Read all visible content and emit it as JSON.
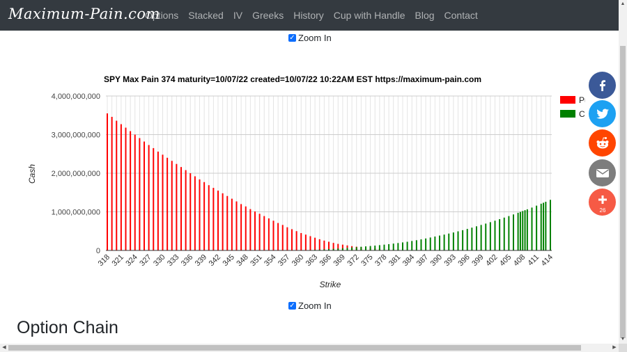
{
  "navbar": {
    "brand": "Maximum-Pain.com",
    "items": [
      "Options",
      "Stacked",
      "IV",
      "Greeks",
      "History",
      "Cup with Handle",
      "Blog",
      "Contact"
    ]
  },
  "zoom_top": {
    "label": "Zoom In",
    "checked": true
  },
  "zoom_bottom": {
    "label": "Zoom In",
    "checked": true
  },
  "section_heading": "Option Chain",
  "social": {
    "buttons": [
      {
        "name": "facebook",
        "color": "#3b5998"
      },
      {
        "name": "twitter",
        "color": "#1da1f2"
      },
      {
        "name": "reddit",
        "color": "#ff4500"
      },
      {
        "name": "email",
        "color": "#7d7d7d"
      },
      {
        "name": "share-more",
        "color": "#f65a45"
      }
    ],
    "share_count": "26"
  },
  "chart_data": {
    "type": "bar",
    "title": "SPY Max Pain 374 maturity=10/07/22 created=10/07/22 10:22AM EST https://maximum-pain.com",
    "xlabel": "Strike",
    "ylabel": "Cash",
    "ylim": [
      0,
      4000000000
    ],
    "yticks": [
      "0",
      "1,000,000,000",
      "2,000,000,000",
      "3,000,000,000",
      "4,000,000,000"
    ],
    "x_tick_labels": [
      "318",
      "321",
      "324",
      "327",
      "330",
      "333",
      "336",
      "339",
      "342",
      "345",
      "348",
      "351",
      "354",
      "357",
      "360",
      "363",
      "366",
      "369",
      "372",
      "375",
      "378",
      "381",
      "384",
      "387",
      "390",
      "393",
      "396",
      "399",
      "402",
      "405",
      "408",
      "411",
      "414"
    ],
    "legend": {
      "position": "right",
      "entries": [
        {
          "name": "Pu",
          "color": "#ff0000"
        },
        {
          "name": "Ca",
          "color": "#008000"
        }
      ]
    },
    "stacked": true,
    "grid": true,
    "series": [
      {
        "name": "Puts",
        "color": "#ff0000",
        "points": [
          [
            318,
            3550000000
          ],
          [
            319,
            3460000000
          ],
          [
            320,
            3360000000
          ],
          [
            321,
            3270000000
          ],
          [
            322,
            3180000000
          ],
          [
            323,
            3090000000
          ],
          [
            324,
            3000000000
          ],
          [
            325,
            2910000000
          ],
          [
            326,
            2820000000
          ],
          [
            327,
            2730000000
          ],
          [
            328,
            2650000000
          ],
          [
            329,
            2560000000
          ],
          [
            330,
            2480000000
          ],
          [
            331,
            2400000000
          ],
          [
            332,
            2320000000
          ],
          [
            333,
            2240000000
          ],
          [
            334,
            2160000000
          ],
          [
            335,
            2080000000
          ],
          [
            336,
            2000000000
          ],
          [
            337,
            1920000000
          ],
          [
            338,
            1840000000
          ],
          [
            339,
            1770000000
          ],
          [
            340,
            1690000000
          ],
          [
            341,
            1620000000
          ],
          [
            342,
            1550000000
          ],
          [
            343,
            1480000000
          ],
          [
            344,
            1410000000
          ],
          [
            345,
            1340000000
          ],
          [
            346,
            1270000000
          ],
          [
            347,
            1200000000
          ],
          [
            348,
            1140000000
          ],
          [
            349,
            1070000000
          ],
          [
            350,
            1010000000
          ],
          [
            351,
            950000000
          ],
          [
            352,
            890000000
          ],
          [
            353,
            830000000
          ],
          [
            354,
            770000000
          ],
          [
            355,
            710000000
          ],
          [
            356,
            660000000
          ],
          [
            357,
            600000000
          ],
          [
            358,
            550000000
          ],
          [
            359,
            500000000
          ],
          [
            360,
            450000000
          ],
          [
            361,
            410000000
          ],
          [
            362,
            370000000
          ],
          [
            363,
            330000000
          ],
          [
            364,
            290000000
          ],
          [
            365,
            255000000
          ],
          [
            366,
            225000000
          ],
          [
            367,
            195000000
          ],
          [
            368,
            170000000
          ],
          [
            369,
            150000000
          ],
          [
            370,
            130000000
          ],
          [
            371,
            112000000
          ],
          [
            372,
            97000000
          ],
          [
            373,
            85000000
          ],
          [
            374,
            75000000
          ],
          [
            375,
            65000000
          ],
          [
            376,
            55000000
          ],
          [
            377,
            45000000
          ],
          [
            378,
            36000000
          ],
          [
            379,
            28000000
          ],
          [
            380,
            21000000
          ],
          [
            381,
            15000000
          ],
          [
            382,
            10000000
          ],
          [
            383,
            6000000
          ],
          [
            384,
            3000000
          ],
          [
            385,
            1000000
          ]
        ]
      },
      {
        "name": "Calls",
        "color": "#008000",
        "points": [
          [
            360,
            5000000
          ],
          [
            361,
            8000000
          ],
          [
            362,
            12000000
          ],
          [
            363,
            17000000
          ],
          [
            364,
            22000000
          ],
          [
            365,
            28000000
          ],
          [
            366,
            35000000
          ],
          [
            367,
            42000000
          ],
          [
            368,
            50000000
          ],
          [
            369,
            58000000
          ],
          [
            370,
            67000000
          ],
          [
            371,
            76000000
          ],
          [
            372,
            85000000
          ],
          [
            373,
            95000000
          ],
          [
            374,
            105000000
          ],
          [
            375,
            115000000
          ],
          [
            376,
            125000000
          ],
          [
            377,
            137000000
          ],
          [
            378,
            150000000
          ],
          [
            379,
            163000000
          ],
          [
            380,
            177000000
          ],
          [
            381,
            192000000
          ],
          [
            382,
            208000000
          ],
          [
            383,
            225000000
          ],
          [
            384,
            245000000
          ],
          [
            385,
            265000000
          ],
          [
            386,
            287000000
          ],
          [
            387,
            310000000
          ],
          [
            388,
            335000000
          ],
          [
            389,
            360000000
          ],
          [
            390,
            385000000
          ],
          [
            391,
            410000000
          ],
          [
            392,
            437000000
          ],
          [
            393,
            465000000
          ],
          [
            394,
            495000000
          ],
          [
            395,
            525000000
          ],
          [
            396,
            557000000
          ],
          [
            397,
            590000000
          ],
          [
            398,
            625000000
          ],
          [
            399,
            660000000
          ],
          [
            400,
            695000000
          ],
          [
            401,
            732000000
          ],
          [
            402,
            770000000
          ],
          [
            403,
            810000000
          ],
          [
            404,
            850000000
          ],
          [
            405,
            890000000
          ],
          [
            406,
            932000000
          ],
          [
            407,
            975000000
          ],
          [
            407.5,
            998000000
          ],
          [
            408,
            1020000000
          ],
          [
            408.5,
            1042000000
          ],
          [
            409,
            1065000000
          ],
          [
            410,
            1110000000
          ],
          [
            411,
            1160000000
          ],
          [
            412,
            1210000000
          ],
          [
            412.5,
            1235000000
          ],
          [
            413,
            1260000000
          ],
          [
            414,
            1310000000
          ]
        ]
      }
    ]
  }
}
